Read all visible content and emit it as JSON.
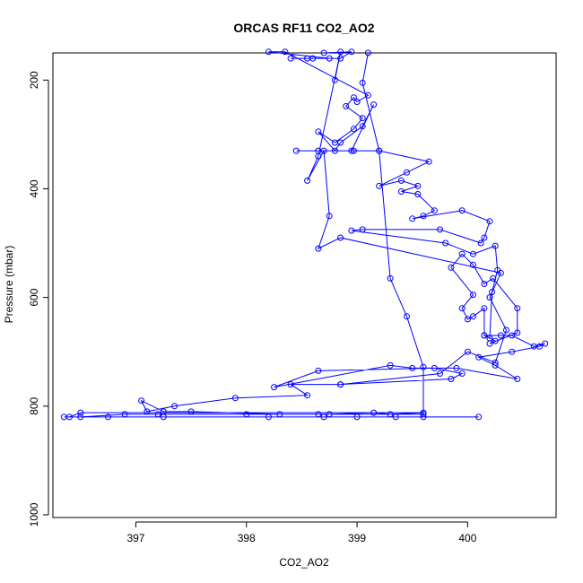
{
  "chart_data": {
    "type": "line",
    "title": "ORCAS RF11 CO2_AO2",
    "xlabel": "CO2_AO2",
    "ylabel": "Pressure (mbar)",
    "xlim": [
      396.25,
      400.8
    ],
    "ylim": [
      1005,
      150
    ],
    "y_reversed": true,
    "x_ticks": [
      397,
      398,
      399,
      400
    ],
    "y_ticks": [
      200,
      400,
      600,
      800,
      1000
    ],
    "grid": false,
    "legend": "none",
    "series_color": "#0000ff",
    "marker": "open-circle",
    "series": [
      {
        "values": [
          [
            398.7,
            150
          ],
          [
            398.95,
            148
          ],
          [
            398.85,
            160
          ],
          [
            398.6,
            160
          ],
          [
            398.4,
            160
          ],
          [
            398.55,
            160
          ],
          [
            398.75,
            160
          ],
          [
            398.2,
            148
          ],
          [
            398.35,
            148
          ],
          [
            399.1,
            228
          ],
          [
            399.0,
            240
          ],
          [
            398.97,
            232
          ],
          [
            398.9,
            248
          ],
          [
            399.05,
            270
          ],
          [
            398.97,
            290
          ],
          [
            398.8,
            315
          ],
          [
            398.65,
            295
          ],
          [
            398.8,
            330
          ],
          [
            398.85,
            315
          ],
          [
            399.05,
            285
          ],
          [
            399.15,
            245
          ],
          [
            398.95,
            330
          ],
          [
            398.65,
            330
          ],
          [
            398.45,
            330
          ],
          [
            398.97,
            330
          ],
          [
            399.2,
            330
          ],
          [
            399.65,
            350
          ],
          [
            399.45,
            370
          ],
          [
            399.2,
            395
          ],
          [
            399.4,
            385
          ],
          [
            399.55,
            395
          ],
          [
            399.4,
            405
          ],
          [
            399.55,
            410
          ],
          [
            399.7,
            440
          ],
          [
            399.6,
            450
          ],
          [
            399.5,
            455
          ],
          [
            399.95,
            440
          ],
          [
            400.2,
            460
          ],
          [
            400.15,
            490
          ],
          [
            400.12,
            500
          ],
          [
            399.75,
            475
          ],
          [
            399.05,
            475
          ],
          [
            398.95,
            477
          ],
          [
            399.8,
            500
          ],
          [
            400.05,
            520
          ],
          [
            400.25,
            505
          ],
          [
            400.27,
            550
          ],
          [
            400.22,
            590
          ],
          [
            400.2,
            675
          ],
          [
            400.15,
            670
          ],
          [
            400.25,
            680
          ],
          [
            400.2,
            685
          ],
          [
            400.45,
            665
          ],
          [
            400.45,
            620
          ],
          [
            400.23,
            565
          ],
          [
            400.15,
            575
          ],
          [
            400.05,
            540
          ],
          [
            399.95,
            520
          ],
          [
            399.85,
            545
          ],
          [
            400.05,
            595
          ],
          [
            399.95,
            620
          ],
          [
            400.0,
            640
          ],
          [
            400.05,
            635
          ],
          [
            400.15,
            620
          ],
          [
            400.15,
            670
          ],
          [
            400.3,
            670
          ],
          [
            400.4,
            670
          ],
          [
            400.6,
            690
          ],
          [
            400.7,
            685
          ],
          [
            400.65,
            690
          ],
          [
            400.4,
            700
          ],
          [
            400.1,
            710
          ],
          [
            400.25,
            725
          ],
          [
            400.45,
            750
          ],
          [
            399.9,
            730
          ],
          [
            399.5,
            730
          ],
          [
            399.3,
            725
          ],
          [
            398.25,
            765
          ],
          [
            398.65,
            735
          ],
          [
            399.7,
            730
          ],
          [
            399.95,
            740
          ],
          [
            399.85,
            750
          ],
          [
            398.85,
            760
          ],
          [
            398.4,
            760
          ],
          [
            398.55,
            780
          ],
          [
            397.9,
            785
          ],
          [
            397.35,
            800
          ],
          [
            397.1,
            810
          ],
          [
            397.05,
            790
          ],
          [
            397.25,
            810
          ],
          [
            397.5,
            810
          ],
          [
            398.3,
            815
          ],
          [
            398.75,
            815
          ],
          [
            399.15,
            812
          ],
          [
            399.3,
            815
          ],
          [
            399.6,
            812
          ],
          [
            396.5,
            812
          ],
          [
            396.4,
            820
          ],
          [
            396.75,
            820
          ],
          [
            397.25,
            820
          ],
          [
            398.2,
            820
          ],
          [
            398.7,
            820
          ],
          [
            399.0,
            820
          ],
          [
            399.35,
            820
          ],
          [
            399.6,
            820
          ],
          [
            400.1,
            820
          ],
          [
            396.35,
            820
          ],
          [
            396.5,
            820
          ],
          [
            396.9,
            815
          ],
          [
            397.2,
            815
          ],
          [
            398.0,
            815
          ],
          [
            398.65,
            815
          ],
          [
            399.6,
            815
          ],
          [
            399.6,
            728
          ],
          [
            399.45,
            635
          ],
          [
            399.3,
            565
          ],
          [
            399.2,
            330
          ],
          [
            399.05,
            205
          ],
          [
            399.1,
            150
          ]
        ]
      },
      {
        "values": [
          [
            398.8,
            200
          ],
          [
            398.85,
            148
          ],
          [
            398.65,
            340
          ],
          [
            398.55,
            385
          ],
          [
            398.7,
            330
          ],
          [
            398.75,
            450
          ],
          [
            398.65,
            510
          ],
          [
            398.85,
            490
          ],
          [
            400.3,
            555
          ],
          [
            400.2,
            600
          ],
          [
            400.35,
            660
          ],
          [
            400.25,
            720
          ],
          [
            400.0,
            700
          ],
          [
            399.75,
            740
          ],
          [
            398.85,
            760
          ]
        ]
      }
    ]
  }
}
